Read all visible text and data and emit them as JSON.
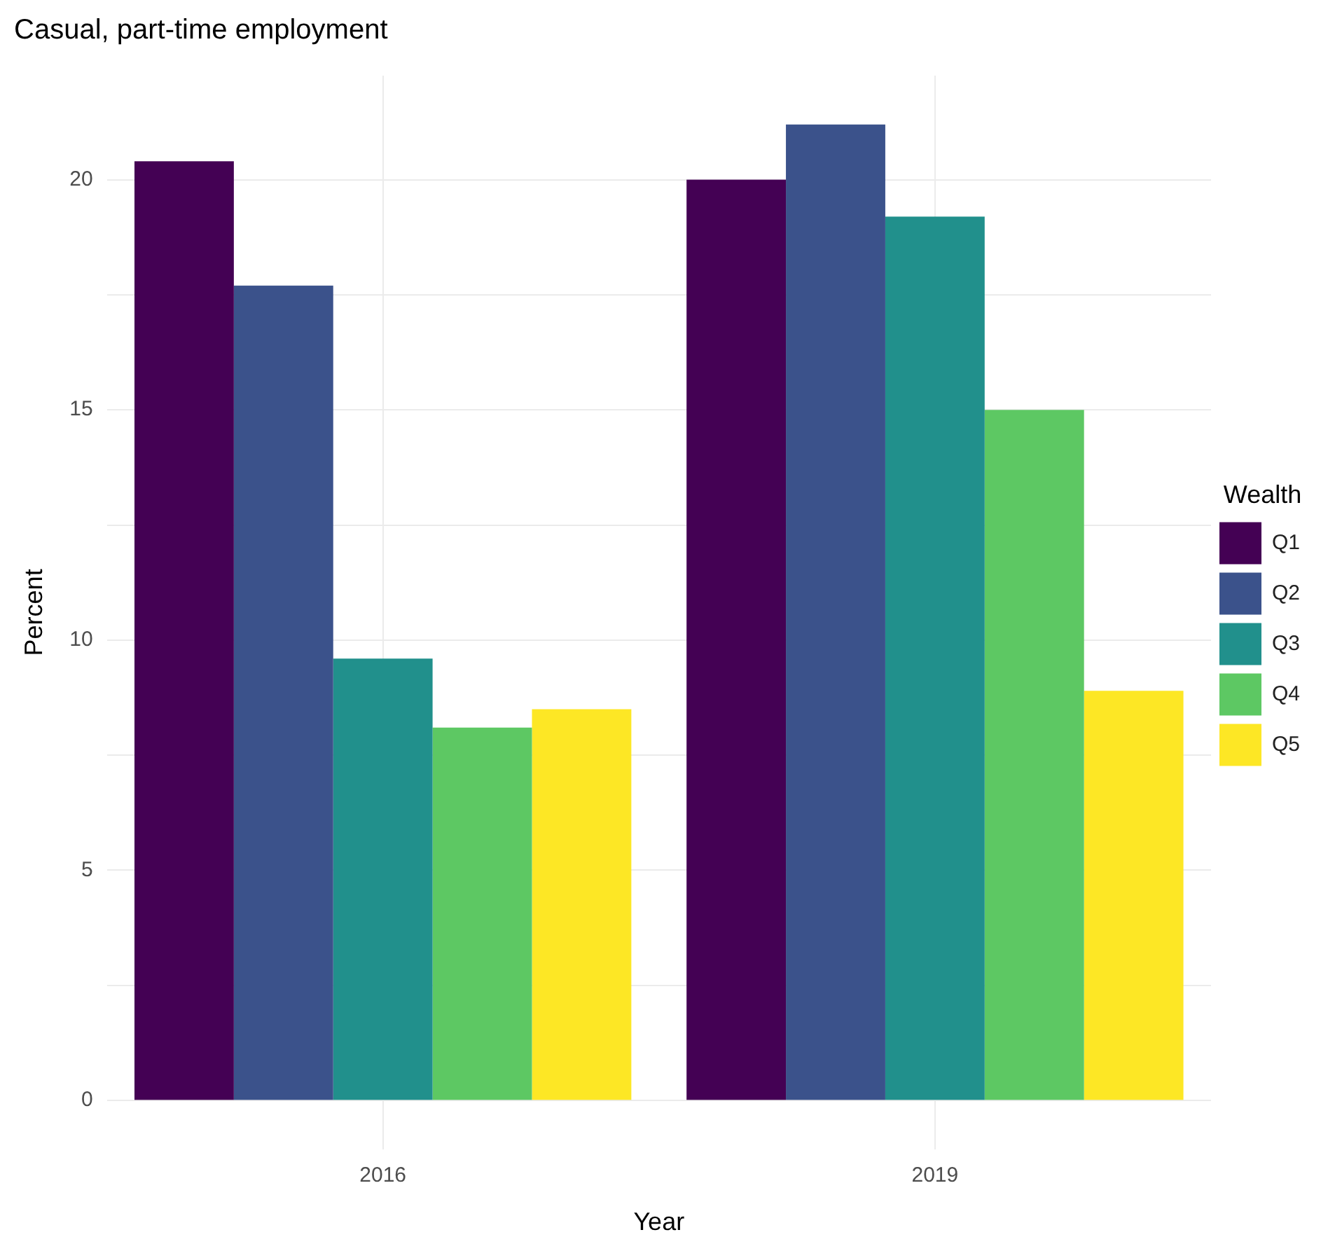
{
  "chart_data": {
    "type": "bar",
    "title": "Casual, part-time employment",
    "xlabel": "Year",
    "ylabel": "Percent",
    "legend_title": "Wealth",
    "categories": [
      "2016",
      "2019"
    ],
    "series": [
      {
        "name": "Q1",
        "color": "#440154",
        "values": [
          20.4,
          20.0
        ]
      },
      {
        "name": "Q2",
        "color": "#3b528b",
        "values": [
          17.7,
          21.2
        ]
      },
      {
        "name": "Q3",
        "color": "#21908c",
        "values": [
          9.6,
          19.2
        ]
      },
      {
        "name": "Q4",
        "color": "#5dc863",
        "values": [
          8.1,
          15.0
        ]
      },
      {
        "name": "Q5",
        "color": "#fde725",
        "values": [
          8.5,
          8.9
        ]
      }
    ],
    "ylim": [
      -1.06,
      22.26
    ],
    "yticks": [
      0,
      {
        "value": 2.5,
        "label": null
      },
      5,
      {
        "value": 7.5,
        "label": null
      },
      10,
      {
        "value": 12.5,
        "label": null
      },
      15,
      {
        "value": 17.5,
        "label": null
      },
      20
    ],
    "grid": true,
    "legend": "right"
  }
}
